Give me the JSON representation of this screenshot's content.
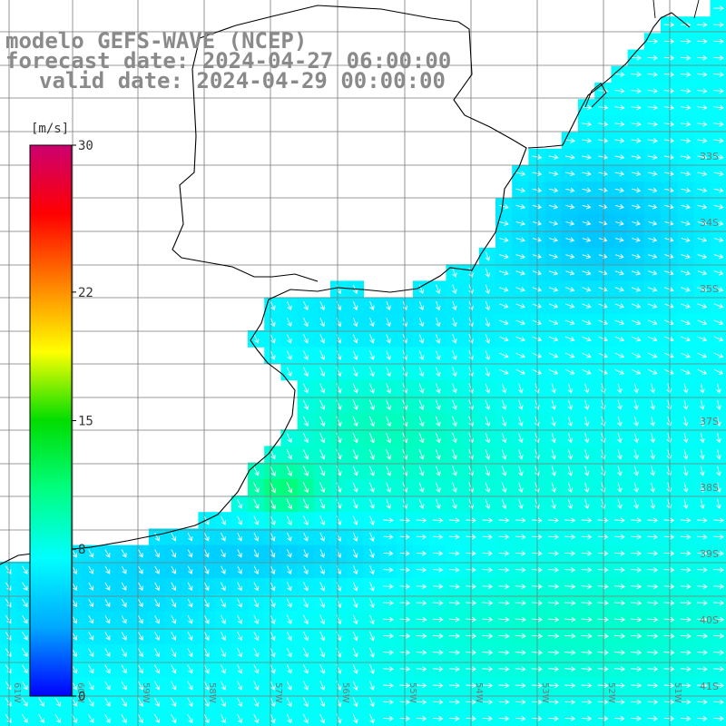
{
  "header": {
    "model": "modelo GEFS-WAVE (NCEP)",
    "forecast": "forecast date: 2024-04-27 06:00:00",
    "valid": "valid date: 2024-04-29 00:00:00"
  },
  "colorbar": {
    "unit": "[m/s]",
    "ticks": [
      "30",
      "22",
      "15",
      "8",
      "0"
    ],
    "tick_values": [
      30,
      22,
      15,
      8,
      0
    ],
    "min": 0,
    "max": 30,
    "stops": [
      "#0000ff",
      "#00a8ff",
      "#00ffff",
      "#00ff80",
      "#00dd00",
      "#ffff00",
      "#ff8000",
      "#ff0000",
      "#cc0070"
    ]
  },
  "map": {
    "lat_labels": [
      "33S",
      "34S",
      "35S",
      "37S",
      "38S",
      "39S",
      "40S",
      "41S"
    ],
    "lon_labels": [
      "61W",
      "60W",
      "59W",
      "58W",
      "57W",
      "56W",
      "55W",
      "54W",
      "53W",
      "52W",
      "51W"
    ],
    "colors": {
      "land": "#ffffff",
      "coast": "#000000",
      "grid": "#7a7a7a",
      "arrow": "#ffffff"
    }
  }
}
